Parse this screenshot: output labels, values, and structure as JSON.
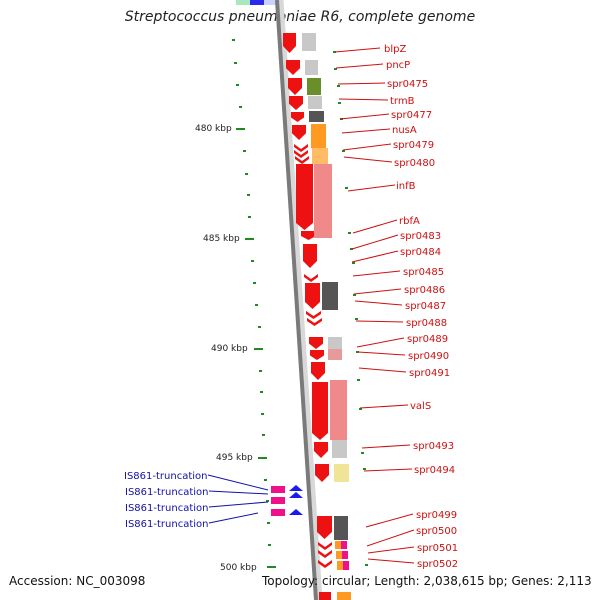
{
  "title": "Streptococcus pneumoniae R6, complete genome",
  "accession": "Accession: NC_003098",
  "topology": "Topology: circular; Length: 2,038,615 bp; Genes: 2,113",
  "colors": {
    "axis": "#7a7a7a",
    "tick": "#1f8a1f",
    "gene_forward": "#ee1111",
    "gene_label": "#cc1111",
    "is_label": "#1111aa",
    "is_arrow": "#1a1aee",
    "is_box": "#ee1188"
  },
  "kbp_labels": [
    "480 kbp",
    "485 kbp",
    "490 kbp",
    "495 kbp",
    "500 kbp"
  ],
  "gene_labels": [
    "blpZ",
    "pncP",
    "spr0475",
    "trmB",
    "spr0477",
    "nusA",
    "spr0479",
    "spr0480",
    "infB",
    "rbfA",
    "spr0483",
    "spr0484",
    "spr0485",
    "spr0486",
    "spr0487",
    "spr0488",
    "spr0489",
    "spr0490",
    "spr0491",
    "valS",
    "spr0493",
    "spr0494",
    "spr0499",
    "spr0500",
    "spr0501",
    "spr0502"
  ],
  "is_labels": [
    "IS861-truncation",
    "IS861-truncation",
    "IS861-truncation",
    "IS861-truncation"
  ]
}
